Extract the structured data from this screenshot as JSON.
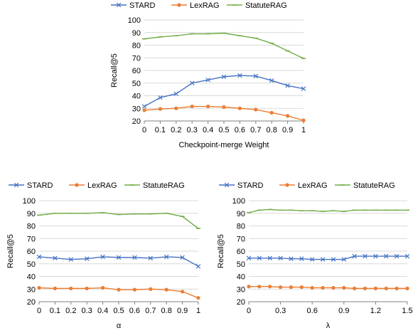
{
  "colors": {
    "STARD": "#4472C4",
    "LexRAG": "#ED7D31",
    "StatuteRAG": "#70AD47",
    "grid": "#D9D9D9",
    "axis": "#808080"
  },
  "chart_data": [
    {
      "type": "line",
      "xlabel": "Checkpoint-merge Weight",
      "ylabel": "Recall@5",
      "x": [
        0,
        0.1,
        0.2,
        0.3,
        0.4,
        0.5,
        0.6,
        0.7,
        0.8,
        0.9,
        1
      ],
      "x_tick_labels": [
        "0",
        "0.1",
        "0.2",
        "0.3",
        "0.4",
        "0.5",
        "0.6",
        "0.7",
        "0.8",
        "0.9",
        "1"
      ],
      "ylim": [
        20,
        100
      ],
      "y_ticks": [
        20,
        30,
        40,
        50,
        60,
        70,
        80,
        90,
        100
      ],
      "grid": "horizontal",
      "legend": "top",
      "series": [
        {
          "name": "STARD",
          "marker": "x",
          "values": [
            31.5,
            38.5,
            41.5,
            50,
            52.5,
            55,
            56,
            55.5,
            52,
            48,
            45.5
          ]
        },
        {
          "name": "LexRAG",
          "marker": "circle",
          "values": [
            28.5,
            29.5,
            30,
            31.5,
            31.5,
            31,
            30,
            29,
            26.5,
            24,
            20.5
          ]
        },
        {
          "name": "StatuteRAG",
          "marker": "dash",
          "values": [
            85,
            86.5,
            87.5,
            89,
            89,
            89.5,
            87.5,
            85.5,
            81.5,
            75.5,
            69.5
          ]
        }
      ]
    },
    {
      "type": "line",
      "xlabel": "α",
      "ylabel": "Recall@5",
      "x": [
        0,
        0.1,
        0.2,
        0.3,
        0.4,
        0.5,
        0.6,
        0.7,
        0.8,
        0.9,
        1
      ],
      "x_tick_labels": [
        "0",
        "0.1",
        "0.2",
        "0.3",
        "0.4",
        "0.5",
        "0.6",
        "0.7",
        "0.8",
        "0.9",
        "1"
      ],
      "ylim": [
        20,
        100
      ],
      "y_ticks": [
        20,
        30,
        40,
        50,
        60,
        70,
        80,
        90,
        100
      ],
      "grid": "horizontal",
      "legend": "top",
      "series": [
        {
          "name": "STARD",
          "marker": "x",
          "values": [
            55.5,
            54.5,
            53.5,
            54,
            55.5,
            55,
            55,
            54.5,
            55.5,
            55,
            48
          ]
        },
        {
          "name": "LexRAG",
          "marker": "circle",
          "values": [
            31,
            30.5,
            30.5,
            30.5,
            31,
            29.5,
            29.5,
            30,
            29.5,
            28,
            23
          ]
        },
        {
          "name": "StatuteRAG",
          "marker": "dash",
          "values": [
            88.5,
            90,
            90,
            90,
            90.5,
            89,
            89.5,
            89.5,
            90,
            87.5,
            78
          ]
        }
      ]
    },
    {
      "type": "line",
      "xlabel": "λ",
      "ylabel": "Recall@5",
      "x": [
        0,
        0.1,
        0.2,
        0.3,
        0.4,
        0.5,
        0.6,
        0.7,
        0.8,
        0.9,
        1.0,
        1.1,
        1.2,
        1.3,
        1.4,
        1.5
      ],
      "x_ticks": [
        0,
        0.3,
        0.6,
        0.9,
        1.2,
        1.5
      ],
      "x_tick_labels": [
        "0",
        "0.3",
        "0.6",
        "0.9",
        "1.2",
        "1.5"
      ],
      "ylim": [
        20,
        100
      ],
      "y_ticks": [
        20,
        30,
        40,
        50,
        60,
        70,
        80,
        90,
        100
      ],
      "grid": "horizontal",
      "legend": "top",
      "series": [
        {
          "name": "STARD",
          "marker": "x",
          "values": [
            54.5,
            54.5,
            54.5,
            54.5,
            54,
            54,
            53.5,
            53.5,
            53.5,
            53.5,
            56,
            56,
            56,
            56,
            56,
            56
          ]
        },
        {
          "name": "LexRAG",
          "marker": "circle",
          "values": [
            32,
            32,
            32,
            31.5,
            31.5,
            31.5,
            31,
            31,
            31,
            31,
            30.5,
            30.5,
            30.5,
            30.5,
            30.5,
            30.5
          ]
        },
        {
          "name": "StatuteRAG",
          "marker": "dash",
          "values": [
            90.5,
            92.5,
            93,
            92.5,
            92.5,
            92,
            92,
            91.5,
            92,
            91.5,
            92.5,
            92.5,
            92.5,
            92.5,
            92.5,
            92.5
          ]
        }
      ]
    }
  ]
}
